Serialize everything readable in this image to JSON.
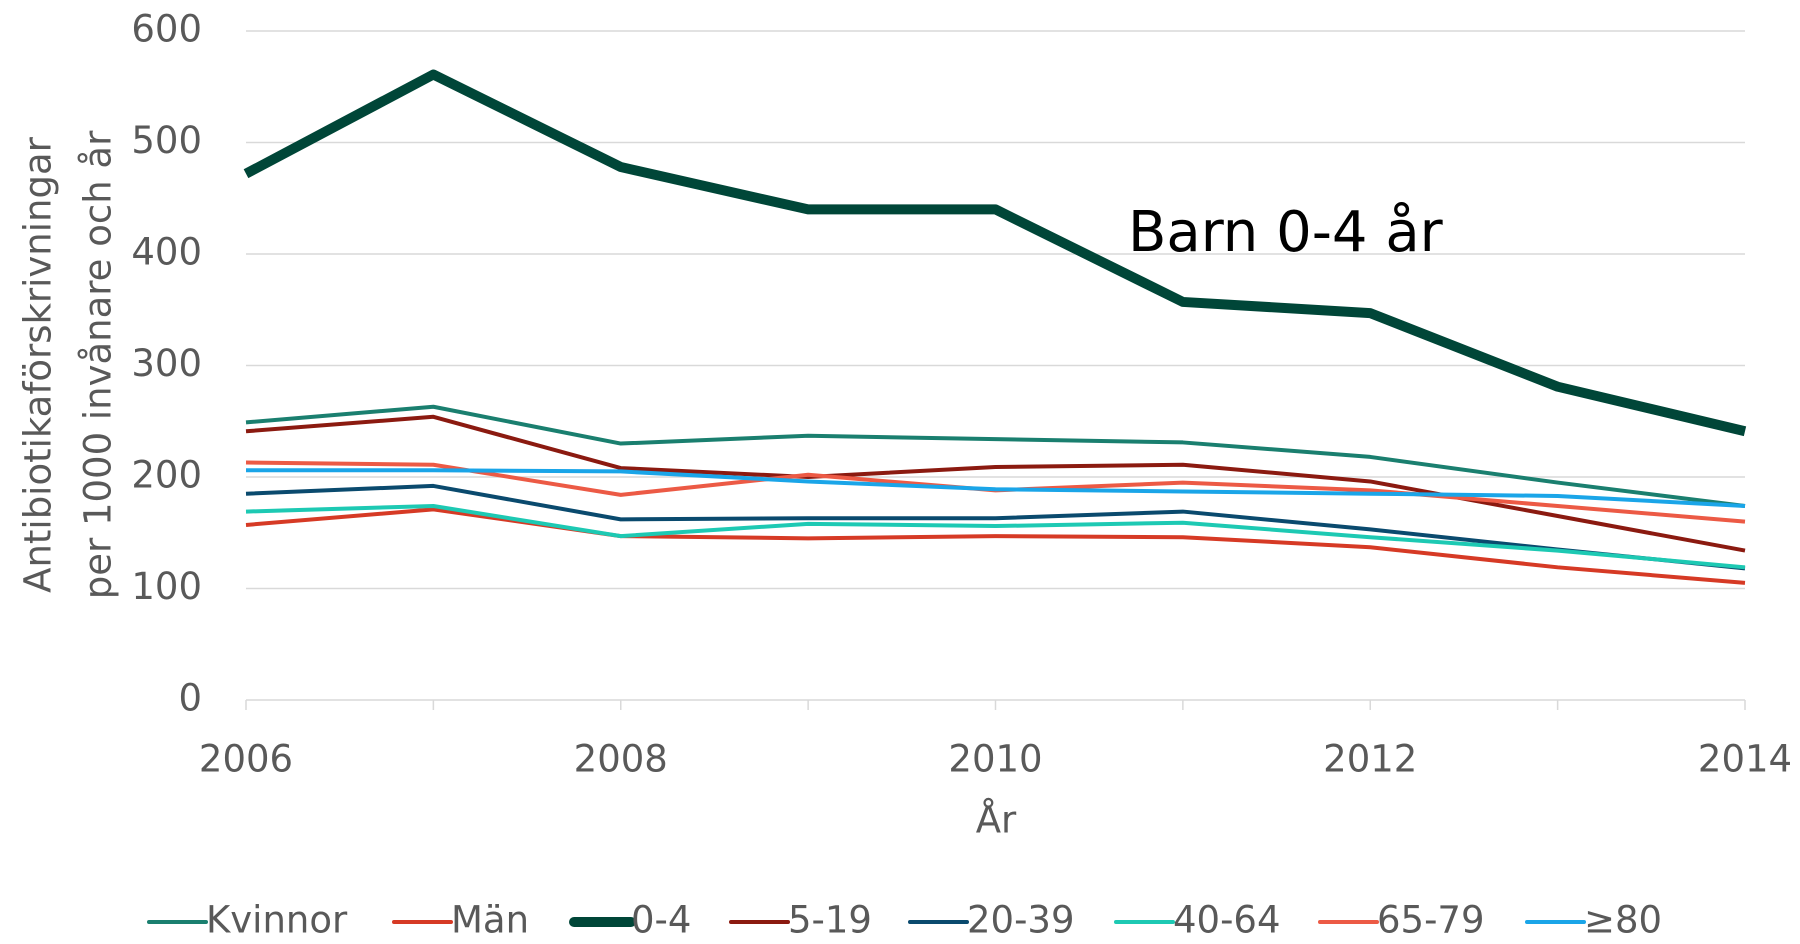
{
  "chart_data": {
    "type": "line",
    "annotation": "Barn 0-4 år",
    "xlabel": "År",
    "ylabel": [
      "Antibiotikaförskrivningar",
      "per 1000 invånare och år"
    ],
    "x": [
      2006,
      2007,
      2008,
      2009,
      2010,
      2011,
      2012,
      2013,
      2014
    ],
    "xlim": [
      2006,
      2014
    ],
    "xticks": [
      2006,
      2008,
      2010,
      2012,
      2014
    ],
    "ylim": [
      0,
      600
    ],
    "yticks": [
      0,
      100,
      200,
      300,
      400,
      500,
      600
    ],
    "grid": true,
    "legend": "bottom",
    "series": [
      {
        "name": "Kvinnor",
        "color": "#1a7f6f",
        "line_width": 4,
        "values": [
          249,
          263,
          230,
          237,
          234,
          231,
          218,
          195,
          174
        ]
      },
      {
        "name": "Män",
        "color": "#d63a25",
        "line_width": 4,
        "values": [
          157,
          171,
          147,
          145,
          147,
          146,
          137,
          119,
          105
        ]
      },
      {
        "name": "0-4",
        "color": "#004638",
        "line_width": 10,
        "values": [
          472,
          561,
          478,
          440,
          440,
          357,
          347,
          281,
          241
        ]
      },
      {
        "name": "5-19",
        "color": "#8b1a10",
        "line_width": 4,
        "values": [
          241,
          254,
          208,
          200,
          209,
          211,
          196,
          165,
          134
        ]
      },
      {
        "name": "20-39",
        "color": "#0a4a6e",
        "line_width": 4,
        "values": [
          185,
          192,
          162,
          163,
          163,
          169,
          153,
          135,
          118
        ]
      },
      {
        "name": "40-64",
        "color": "#1dc9b3",
        "line_width": 4,
        "values": [
          169,
          174,
          147,
          158,
          156,
          159,
          146,
          134,
          119
        ]
      },
      {
        "name": "65-79",
        "color": "#ec5a45",
        "line_width": 4,
        "values": [
          213,
          211,
          184,
          202,
          188,
          195,
          188,
          174,
          160
        ]
      },
      {
        "name": "≥80",
        "color": "#1aa5e8",
        "line_width": 4,
        "values": [
          206,
          206,
          205,
          196,
          189,
          187,
          185,
          183,
          174
        ]
      }
    ]
  }
}
